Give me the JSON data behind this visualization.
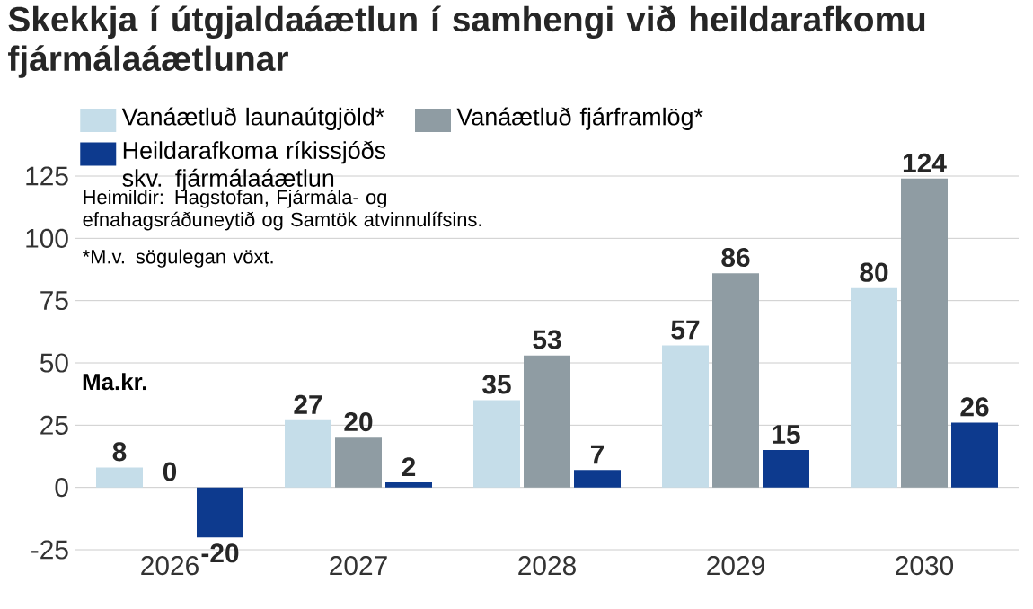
{
  "chart_data": {
    "type": "bar",
    "title": "Skekkja í útgjaldaáætlun í samhengi við heildarafkomu fjármálaáætlunar",
    "ylabel": "Ma.kr.",
    "categories": [
      "2026",
      "2027",
      "2028",
      "2029",
      "2030"
    ],
    "series": [
      {
        "name": "Vanáætluð launaútgjöld*",
        "color": "#c5dde9",
        "values": [
          8,
          27,
          35,
          57,
          80
        ]
      },
      {
        "name": "Vanáætluð fjárframlög*",
        "color": "#8f9ca3",
        "values": [
          0,
          20,
          53,
          86,
          124
        ]
      },
      {
        "name": "Heildarafkoma ríkissjóðs skv. fjármálaáætlun",
        "color": "#0d3a8e",
        "values": [
          -20,
          2,
          7,
          15,
          26
        ]
      }
    ],
    "annotations": [
      "Heimildir: Hagstofan, Fjármála- og efnahagsráðuneytið og Samtök atvinnulífsins.",
      "*M.v. sögulegan vöxt."
    ],
    "ylim": [
      -25,
      125
    ],
    "yticks": [
      -25,
      0,
      25,
      50,
      75,
      100,
      125
    ],
    "grid": "y",
    "legend": "top left",
    "data_labels": true
  }
}
